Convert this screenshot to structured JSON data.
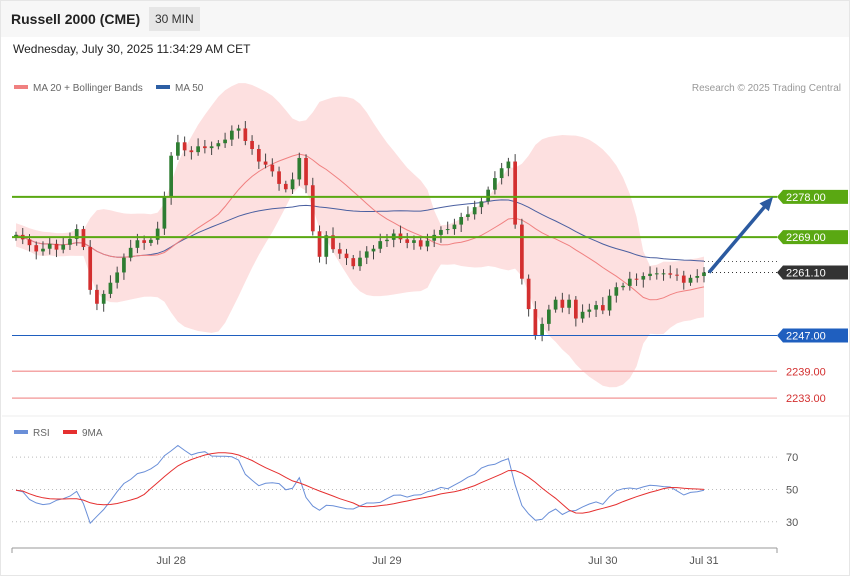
{
  "header": {
    "title": "Russell 2000 (CME)",
    "timeframe": "30 MIN",
    "datetime": "Wednesday, July 30, 2025 11:34:29 AM CET"
  },
  "legend": {
    "ma20": "MA 20 + Bollinger Bands",
    "ma50": "MA 50",
    "credit": "Research © 2025 Trading Central"
  },
  "rsi_legend": {
    "rsi": "RSI",
    "ma9": "9MA"
  },
  "colors": {
    "up": "#2e7d32",
    "down": "#d32f2f",
    "band": "#fde0e0",
    "ma20": "#f08080",
    "ma50": "#4a5fa0",
    "resistance": "#5aa812",
    "support": "#1f5fbf",
    "target_line": "#f4a6a6",
    "arrow": "#2b5aa0",
    "current": "#333333",
    "rsi": "#6a8fd8",
    "rsi_ma": "#e53030"
  },
  "chart_data": [
    {
      "type": "candlestick",
      "title": "Russell 2000 (CME)",
      "x_labels": [
        "Jul 28",
        "Jul 29",
        "Jul 30",
        "Jul 31"
      ],
      "ylim": [
        2229,
        2301
      ],
      "levels": [
        {
          "label": "2278.00",
          "value": 2278.0,
          "kind": "resistance"
        },
        {
          "label": "2269.00",
          "value": 2269.0,
          "kind": "resistance"
        },
        {
          "label": "2261.10",
          "value": 2261.1,
          "kind": "current"
        },
        {
          "label": "2247.00",
          "value": 2247.0,
          "kind": "support"
        },
        {
          "label": "2239.00",
          "value": 2239.0,
          "kind": "target"
        },
        {
          "label": "2233.00",
          "value": 2233.0,
          "kind": "target"
        }
      ],
      "forecast": {
        "from": 2261.1,
        "to": 2278.0
      },
      "close": [
        2269.5,
        2268.5,
        2267.2,
        2265.8,
        2266.4,
        2267.5,
        2266.2,
        2267.3,
        2268.6,
        2270.8,
        2266.8,
        2257.2,
        2254.1,
        2256.3,
        2258.8,
        2261.1,
        2264.4,
        2266.6,
        2268.3,
        2267.7,
        2268.4,
        2270.9,
        2278.0,
        2287.2,
        2290.2,
        2288.4,
        2288.0,
        2289.3,
        2288.9,
        2289.3,
        2290.0,
        2290.8,
        2292.8,
        2293.3,
        2290.5,
        2288.7,
        2285.9,
        2285.2,
        2283.7,
        2280.9,
        2279.7,
        2281.9,
        2286.7,
        2280.6,
        2270.3,
        2264.6,
        2269.4,
        2266.3,
        2265.3,
        2264.3,
        2262.5,
        2264.4,
        2265.8,
        2266.4,
        2268.1,
        2268.4,
        2269.8,
        2268.5,
        2267.7,
        2268.3,
        2266.9,
        2268.2,
        2269.5,
        2270.6,
        2270.8,
        2271.8,
        2273.5,
        2274.1,
        2275.7,
        2277.0,
        2279.6,
        2282.2,
        2284.4,
        2285.9,
        2271.8,
        2259.7,
        2252.9,
        2246.9,
        2249.6,
        2252.8,
        2255.0,
        2253.2,
        2255.0,
        2250.8,
        2252.3,
        2252.8,
        2253.8,
        2252.6,
        2255.9,
        2257.8,
        2258.1,
        2259.7,
        2259.5,
        2260.3,
        2260.8,
        2260.9,
        2260.9,
        2260.6,
        2260.4,
        2258.8,
        2259.9,
        2260.3,
        2261.1
      ],
      "rsi": {
        "values": [
          49.5,
          48.6,
          43.8,
          41.7,
          40.6,
          41.1,
          43.3,
          44.3,
          45.9,
          48.8,
          41.1,
          29.1,
          33.4,
          37.6,
          42.9,
          48.7,
          53.7,
          56.2,
          59.8,
          60.9,
          62.8,
          65.6,
          70.9,
          73.9,
          77.2,
          74.2,
          71.4,
          72.7,
          73.4,
          70.7,
          70.6,
          70.5,
          70.2,
          68.2,
          59.4,
          55.7,
          52.3,
          53.8,
          54.1,
          53.6,
          49.8,
          50.7,
          57.3,
          45.1,
          39.7,
          37.1,
          40.2,
          39.9,
          39.0,
          38.1,
          37.9,
          39.8,
          41.6,
          41.6,
          42.0,
          44.3,
          46.4,
          46.6,
          45.3,
          46.5,
          46.7,
          48.6,
          49.6,
          51.3,
          50.5,
          52.7,
          55.0,
          57.6,
          59.4,
          63.3,
          64.9,
          65.6,
          67.6,
          69.1,
          52.9,
          40.1,
          34.9,
          30.9,
          31.5,
          35.6,
          37.9,
          34.5,
          36.6,
          37.0,
          39.2,
          41.0,
          42.3,
          40.8,
          45.6,
          49.2,
          50.5,
          50.9,
          50.3,
          51.6,
          52.6,
          52.3,
          51.8,
          51.5,
          49.1,
          46.6,
          48.2,
          48.6,
          49.5
        ],
        "ticks": [
          70,
          50,
          30
        ],
        "ylim": [
          15,
          80
        ]
      }
    }
  ]
}
